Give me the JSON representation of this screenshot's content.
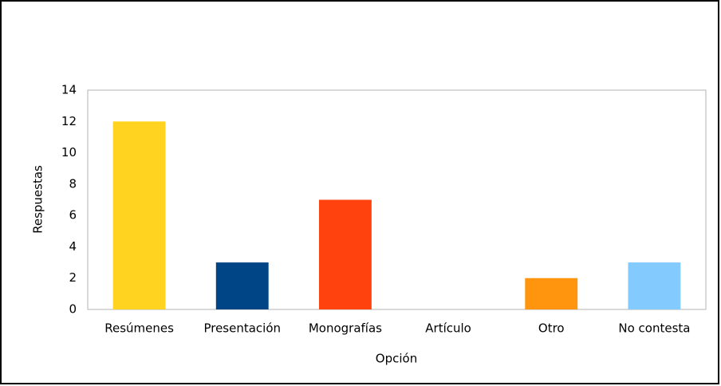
{
  "chart_data": {
    "type": "bar",
    "x_label": "Opción",
    "y_label": "Respuestas",
    "categories": [
      "Resúmenes",
      "Presentación",
      "Monografías",
      "Artículo",
      "Otro",
      "No contesta"
    ],
    "values": [
      12,
      3,
      7,
      0,
      2,
      3
    ],
    "colors": [
      "#ffd320",
      "#004586",
      "#ff420e",
      "#579d1c",
      "#ff950e",
      "#83caff"
    ],
    "ylim": [
      0,
      14
    ],
    "yticks": [
      0,
      2,
      4,
      6,
      8,
      10,
      12,
      14
    ],
    "grid": false
  }
}
